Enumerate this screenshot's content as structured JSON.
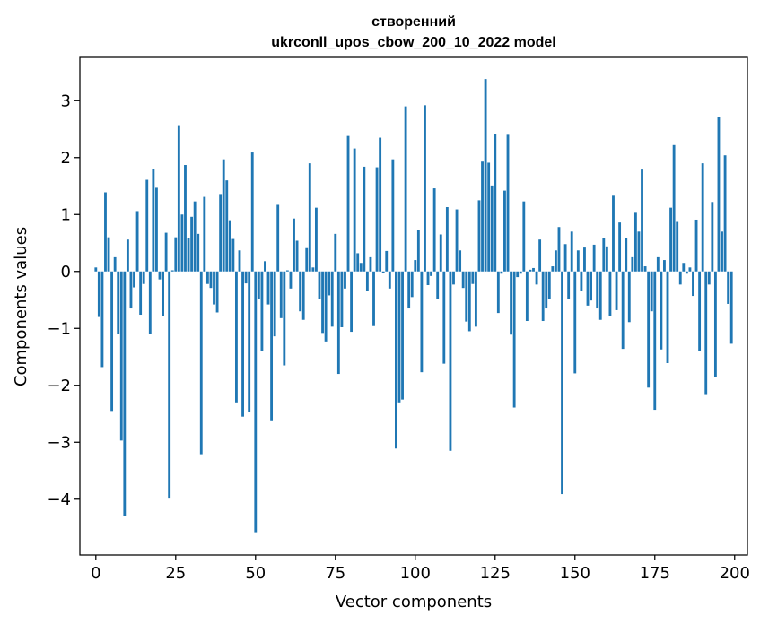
{
  "chart_data": {
    "type": "bar",
    "title_line1": "створенний",
    "title_line2": "ukrconll_upos_cbow_200_10_2022 model",
    "xlabel": "Vector components",
    "ylabel": "Components values",
    "xlim": [
      -5,
      204
    ],
    "ylim": [
      -4.98,
      3.76
    ],
    "xticks": [
      0,
      25,
      50,
      75,
      100,
      125,
      150,
      175,
      200
    ],
    "xtick_labels": [
      "0",
      "25",
      "50",
      "75",
      "100",
      "125",
      "150",
      "175",
      "200"
    ],
    "yticks": [
      -4,
      -3,
      -2,
      -1,
      0,
      1,
      2,
      3
    ],
    "ytick_labels": [
      "−4",
      "−3",
      "−2",
      "−1",
      "0",
      "1",
      "2",
      "3"
    ],
    "bar_color": "#1f77b4",
    "values": [
      0.07,
      -0.8,
      -1.68,
      1.39,
      0.6,
      -2.45,
      0.25,
      -1.1,
      -2.97,
      -4.3,
      0.56,
      -0.65,
      -0.28,
      1.06,
      -0.76,
      -0.22,
      1.61,
      -1.1,
      1.8,
      1.47,
      -0.14,
      -0.78,
      0.68,
      -3.99,
      0.02,
      0.6,
      2.57,
      1.0,
      1.87,
      0.59,
      0.96,
      1.23,
      0.66,
      -3.21,
      1.31,
      -0.22,
      -0.29,
      -0.58,
      -0.72,
      1.36,
      1.97,
      1.6,
      0.9,
      0.57,
      -2.3,
      0.37,
      -2.55,
      -0.21,
      -2.47,
      2.09,
      -4.58,
      -0.48,
      -1.4,
      0.18,
      -0.58,
      -2.63,
      -1.14,
      1.17,
      -0.82,
      -1.65,
      0.02,
      -0.3,
      0.93,
      0.54,
      -0.7,
      -0.85,
      0.41,
      1.9,
      0.07,
      1.12,
      -0.48,
      -1.08,
      -1.23,
      -0.42,
      -0.97,
      0.66,
      -1.8,
      -0.98,
      -0.3,
      2.38,
      -1.06,
      2.16,
      0.32,
      0.15,
      1.84,
      -0.35,
      0.25,
      -0.96,
      1.83,
      2.35,
      -0.02,
      0.36,
      -0.3,
      1.97,
      -3.11,
      -2.3,
      -2.25,
      2.9,
      -0.65,
      -0.45,
      0.2,
      0.73,
      -1.77,
      2.92,
      -0.24,
      -0.08,
      1.46,
      -0.49,
      0.65,
      -1.62,
      1.13,
      -3.15,
      -0.23,
      1.09,
      0.37,
      -0.29,
      -0.88,
      -1.05,
      -0.22,
      -0.97,
      1.25,
      1.93,
      3.38,
      1.91,
      1.51,
      2.42,
      -0.73,
      -0.04,
      1.42,
      2.4,
      -1.11,
      -2.39,
      -0.1,
      -0.04,
      1.23,
      -0.87,
      0.03,
      0.06,
      -0.23,
      0.56,
      -0.87,
      -0.65,
      -0.48,
      0.09,
      0.37,
      0.78,
      -3.91,
      0.48,
      -0.48,
      0.7,
      -1.79,
      0.37,
      -0.35,
      0.42,
      -0.6,
      -0.51,
      0.47,
      -0.65,
      -0.85,
      0.58,
      0.44,
      -0.78,
      1.33,
      -0.68,
      0.86,
      -1.36,
      0.59,
      -0.89,
      0.25,
      1.03,
      0.7,
      1.79,
      0.09,
      -2.04,
      -0.7,
      -2.43,
      0.25,
      -1.37,
      0.2,
      -1.61,
      1.12,
      2.22,
      0.87,
      -0.23,
      0.15,
      -0.04,
      0.07,
      -0.43,
      0.91,
      -1.4,
      1.9,
      -2.17,
      -0.23,
      1.22,
      -1.85,
      2.71,
      0.7,
      2.04,
      -0.57,
      -1.27
    ]
  }
}
